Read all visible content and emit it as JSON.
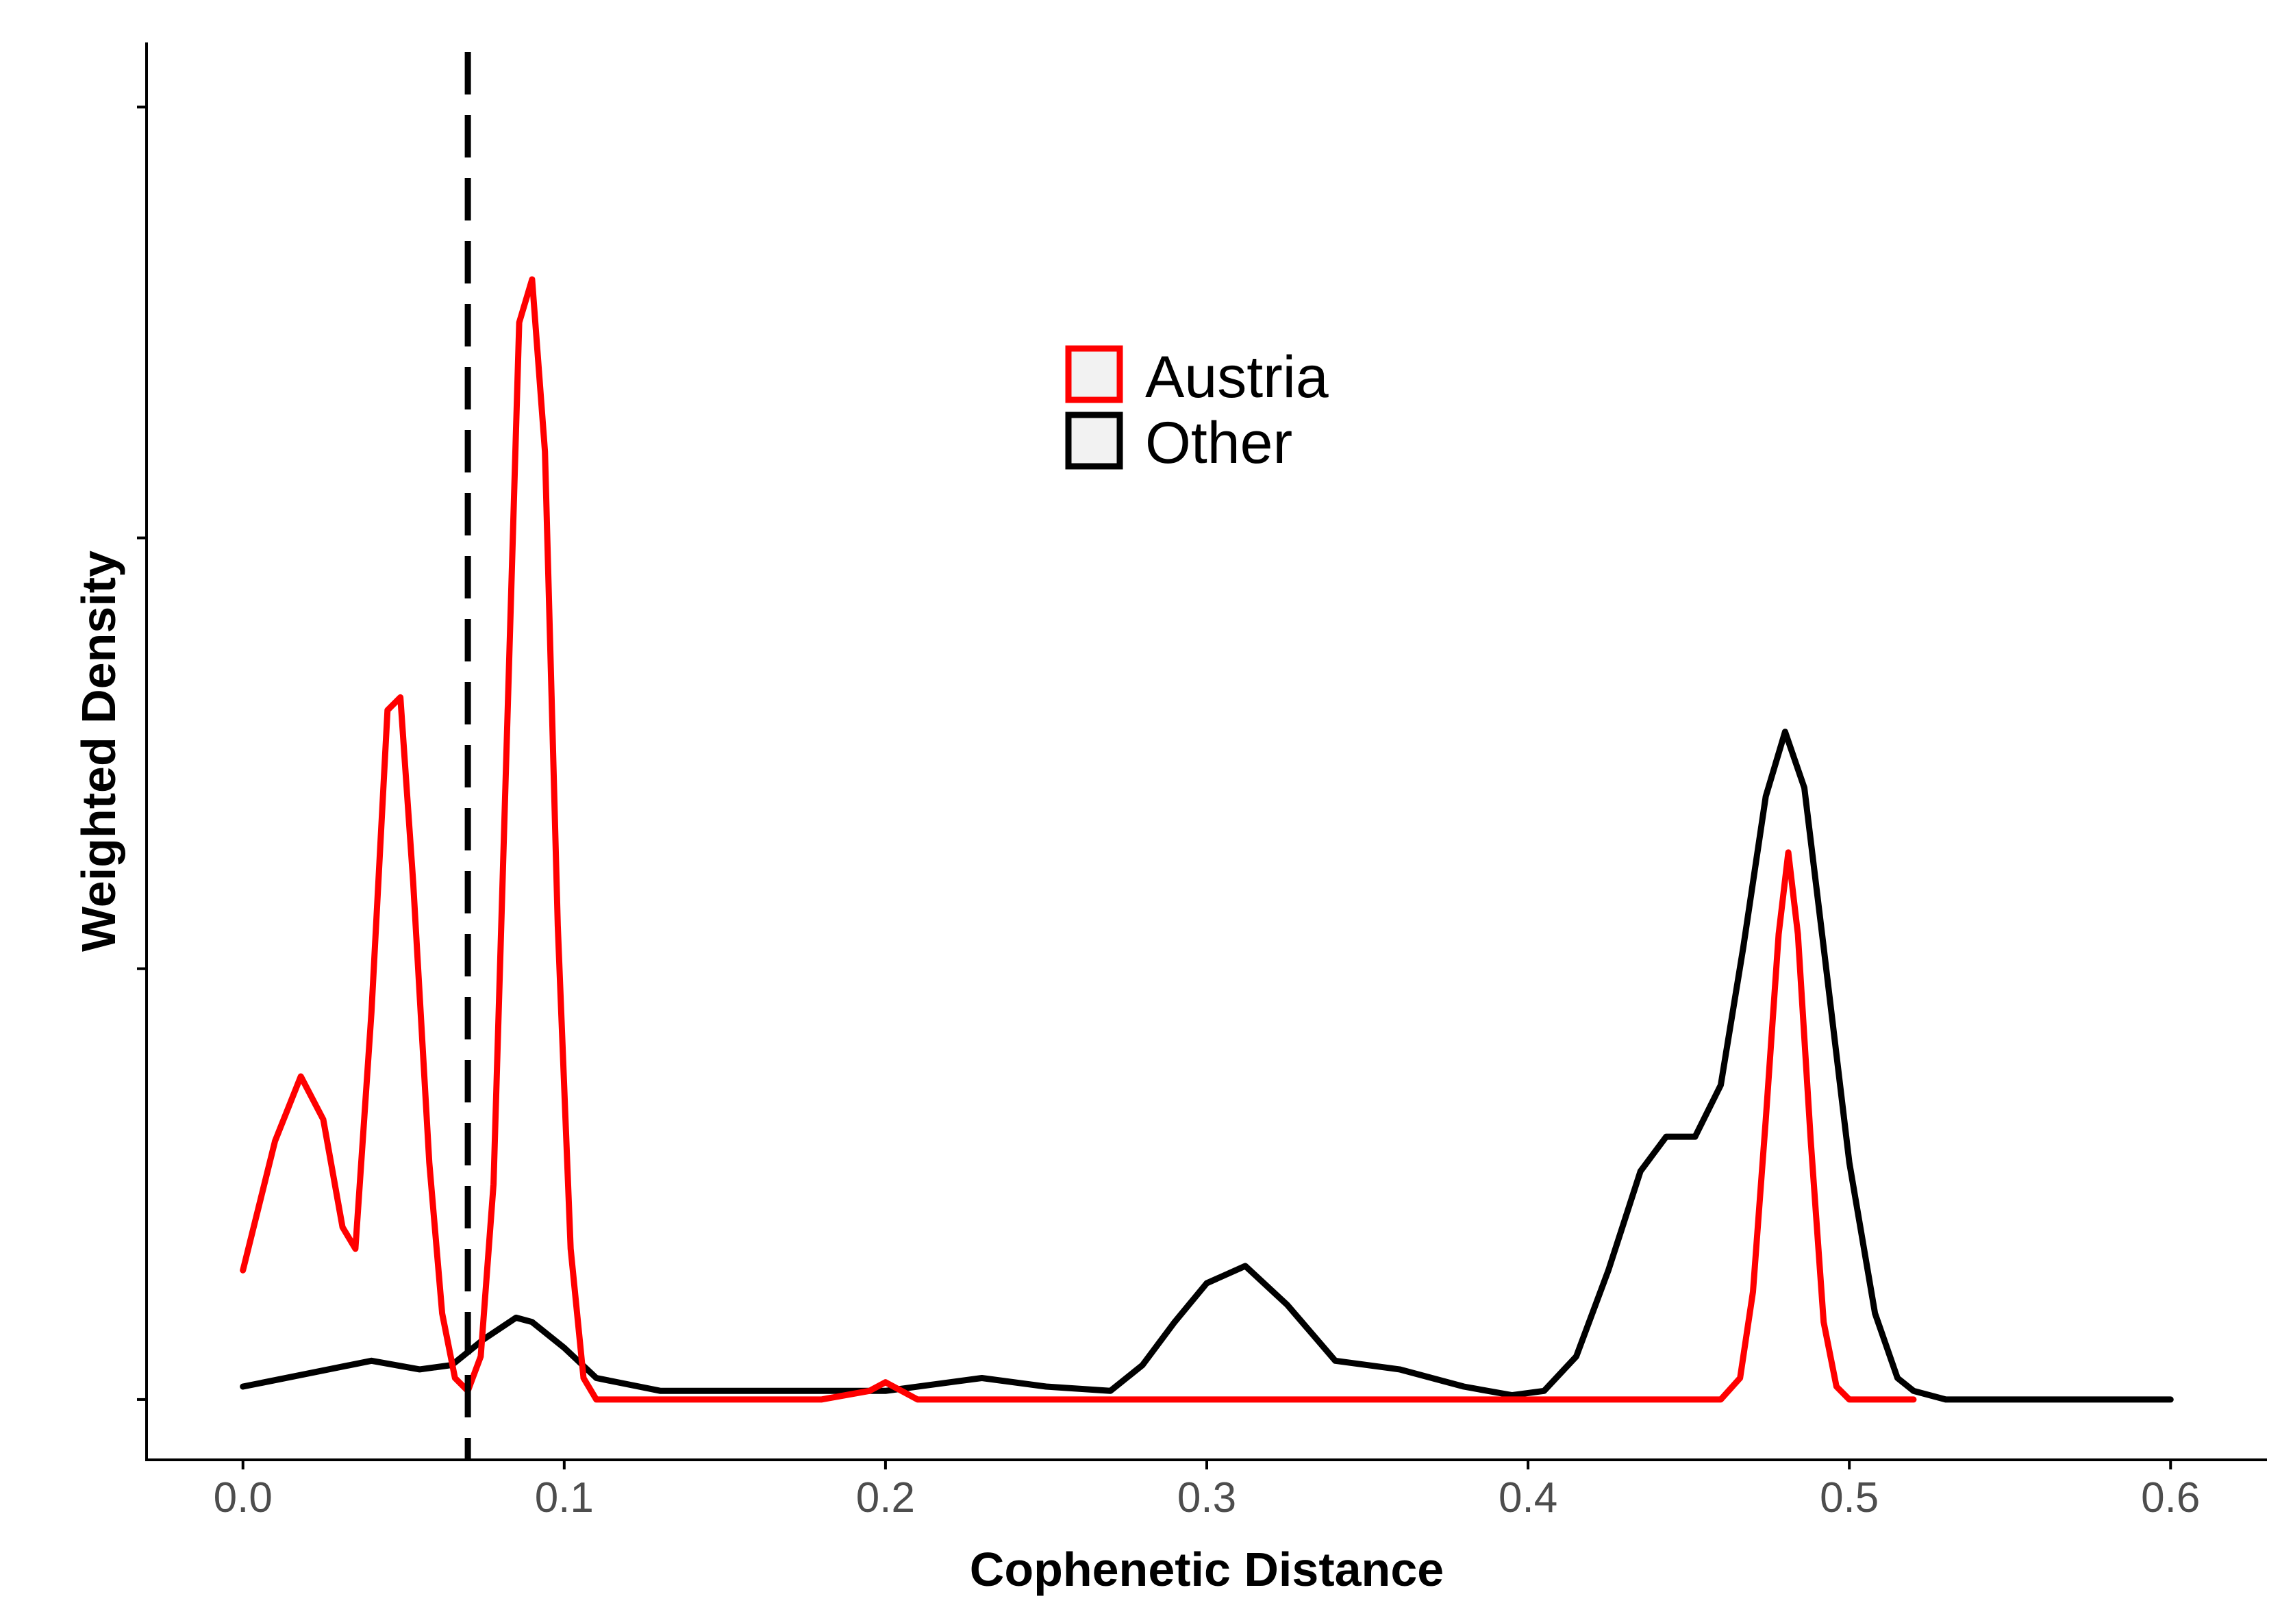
{
  "chart_data": {
    "type": "line",
    "title": "",
    "xlabel": "Cophenetic Distance",
    "ylabel": "Weighted Density",
    "xlim": [
      -0.03,
      0.63
    ],
    "ylim": [
      -0.14,
      3.15
    ],
    "x_ticks": [
      0.0,
      0.1,
      0.2,
      0.3,
      0.4,
      0.5,
      0.6
    ],
    "x_tick_labels": [
      "0.0",
      "0.1",
      "0.2",
      "0.3",
      "0.4",
      "0.5",
      "0.6"
    ],
    "y_ticks": [
      0,
      1,
      2,
      3
    ],
    "y_tick_labels": [
      "",
      "",
      "",
      ""
    ],
    "grid": false,
    "legend_position": "top-center",
    "reference_line": {
      "x": 0.07,
      "style": "dashed",
      "color": "#000000"
    },
    "series": [
      {
        "name": "Austria",
        "color": "#ff0000",
        "x": [
          0.0,
          0.01,
          0.018,
          0.025,
          0.031,
          0.035,
          0.04,
          0.045,
          0.049,
          0.053,
          0.058,
          0.062,
          0.066,
          0.07,
          0.074,
          0.078,
          0.082,
          0.086,
          0.09,
          0.094,
          0.098,
          0.102,
          0.106,
          0.11,
          0.12,
          0.18,
          0.195,
          0.2,
          0.205,
          0.21,
          0.3,
          0.4,
          0.46,
          0.466,
          0.47,
          0.474,
          0.478,
          0.481,
          0.484,
          0.488,
          0.492,
          0.496,
          0.5,
          0.52
        ],
        "y": [
          0.3,
          0.6,
          0.75,
          0.65,
          0.4,
          0.35,
          0.9,
          1.6,
          1.63,
          1.2,
          0.55,
          0.2,
          0.05,
          0.02,
          0.1,
          0.5,
          1.5,
          2.5,
          2.6,
          2.2,
          1.1,
          0.35,
          0.05,
          0.0,
          0.0,
          0.0,
          0.02,
          0.04,
          0.02,
          0.0,
          0.0,
          0.0,
          0.0,
          0.05,
          0.25,
          0.65,
          1.08,
          1.27,
          1.08,
          0.6,
          0.18,
          0.03,
          0.0,
          0.0
        ]
      },
      {
        "name": "Other",
        "color": "#000000",
        "x": [
          0.0,
          0.02,
          0.04,
          0.055,
          0.065,
          0.075,
          0.085,
          0.09,
          0.1,
          0.11,
          0.13,
          0.2,
          0.23,
          0.25,
          0.27,
          0.28,
          0.29,
          0.3,
          0.312,
          0.325,
          0.34,
          0.36,
          0.38,
          0.395,
          0.405,
          0.415,
          0.425,
          0.435,
          0.443,
          0.452,
          0.46,
          0.467,
          0.474,
          0.48,
          0.486,
          0.492,
          0.5,
          0.508,
          0.515,
          0.52,
          0.53,
          0.6
        ],
        "y": [
          0.03,
          0.06,
          0.09,
          0.07,
          0.08,
          0.14,
          0.19,
          0.18,
          0.12,
          0.05,
          0.02,
          0.02,
          0.05,
          0.03,
          0.02,
          0.08,
          0.18,
          0.27,
          0.31,
          0.22,
          0.09,
          0.07,
          0.03,
          0.01,
          0.02,
          0.1,
          0.3,
          0.53,
          0.61,
          0.61,
          0.73,
          1.05,
          1.4,
          1.55,
          1.42,
          1.05,
          0.55,
          0.2,
          0.05,
          0.02,
          0.0,
          0.0
        ]
      }
    ]
  }
}
